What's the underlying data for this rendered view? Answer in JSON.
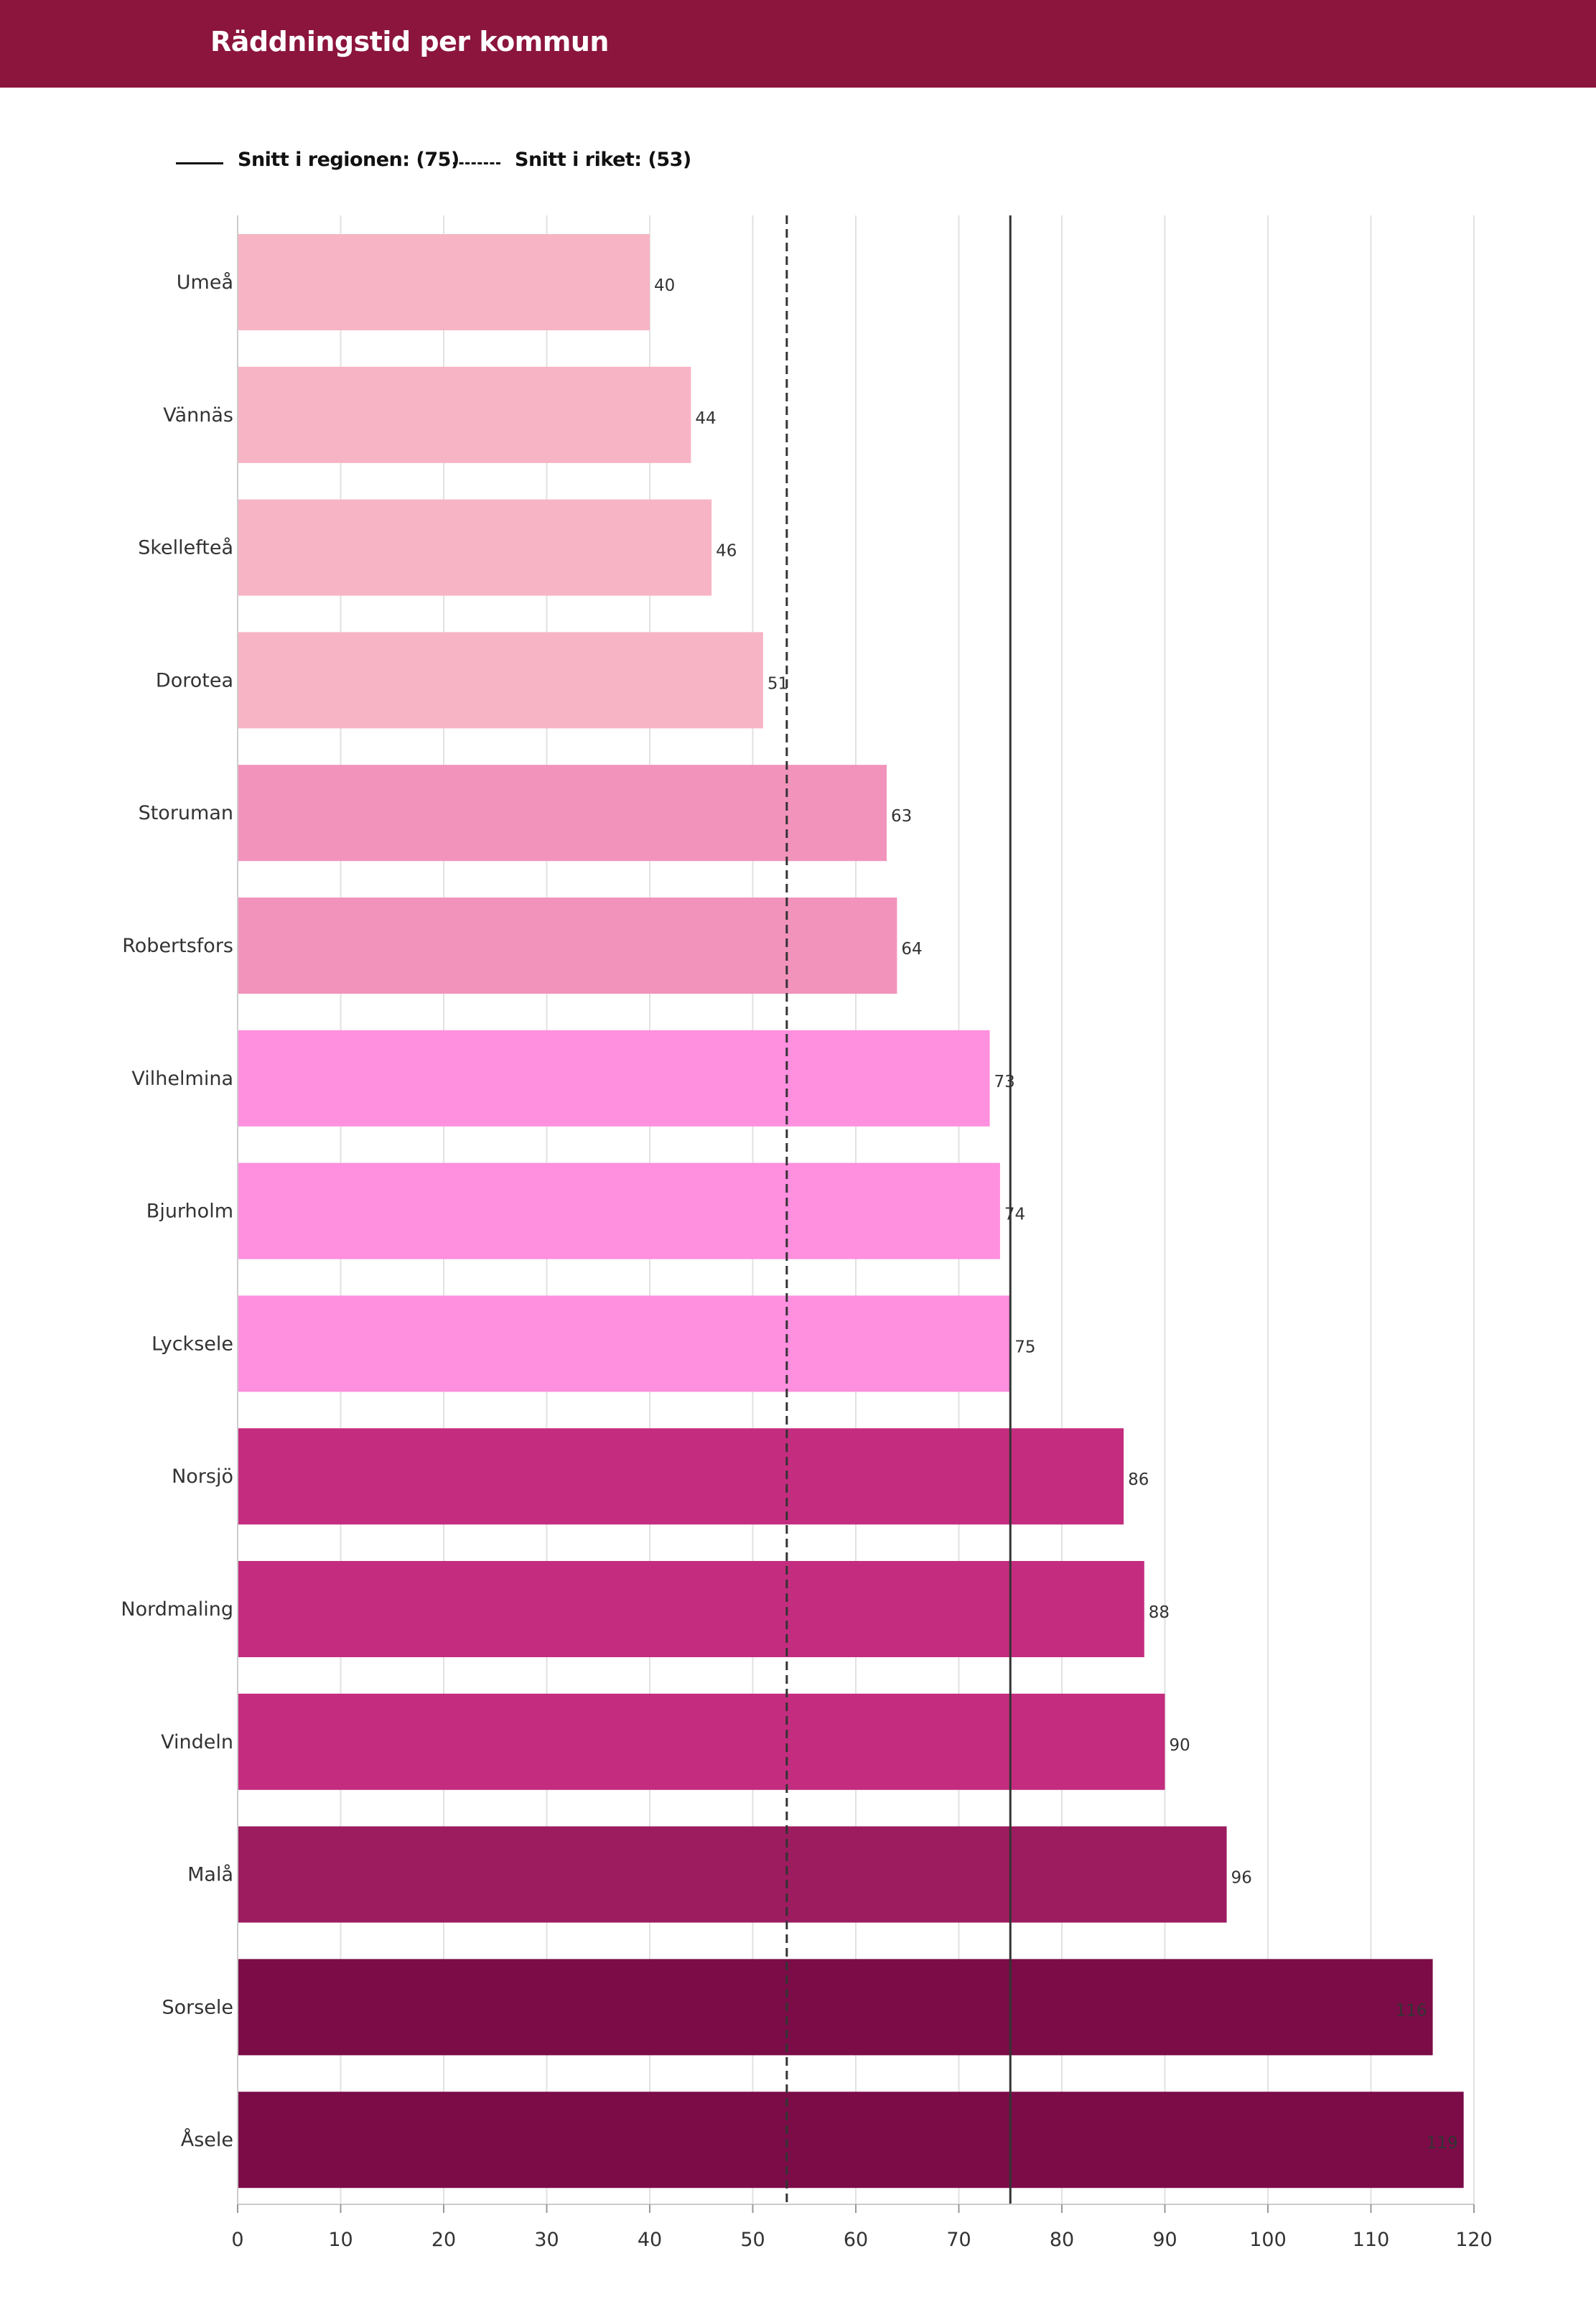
{
  "header": {
    "title": "Räddningstid per kommun"
  },
  "legend": {
    "region_label": "Snitt i regionen: (75)",
    "national_label": "Snitt i riket: (53)"
  },
  "colors": {
    "header_bg": "#8c153d",
    "gridline": "#e2e2e2",
    "reference_line": "#333333"
  },
  "chart_data": {
    "type": "bar",
    "orientation": "horizontal",
    "title": "Räddningstid per kommun",
    "categories": [
      "Umeå",
      "Vännäs",
      "Skellefteå",
      "Dorotea",
      "Storuman",
      "Robertsfors",
      "Vilhelmina",
      "Bjurholm",
      "Lycksele",
      "Norsjö",
      "Nordmaling",
      "Vindeln",
      "Malå",
      "Sorsele",
      "Åsele"
    ],
    "values": [
      40,
      44,
      46,
      51,
      63,
      64,
      73,
      74,
      75,
      86,
      88,
      90,
      96,
      116,
      119
    ],
    "bar_colors": [
      "#f7b4c4",
      "#f7b4c4",
      "#f7b4c4",
      "#f7b4c4",
      "#f293bb",
      "#f293bb",
      "#ff8fdf",
      "#ff8fdf",
      "#ff8fdf",
      "#c42d7f",
      "#c42d7f",
      "#c42d7f",
      "#9c1c5f",
      "#7b0c48",
      "#7b0c48"
    ],
    "value_labels": [
      "40",
      "44",
      "46",
      "51",
      "63",
      "64",
      "73",
      "74",
      "75",
      "86",
      "88",
      "90",
      "96",
      "116",
      "119"
    ],
    "xlim": [
      0,
      120
    ],
    "xticks": [
      0,
      10,
      20,
      30,
      40,
      50,
      60,
      70,
      80,
      90,
      100,
      110,
      120
    ],
    "xlabel": "",
    "ylabel": "",
    "grid": true,
    "reference_lines": [
      {
        "name": "Snitt i regionen",
        "value": 75,
        "style": "solid"
      },
      {
        "name": "Snitt i riket",
        "value": 53.3,
        "style": "dashed"
      }
    ]
  }
}
